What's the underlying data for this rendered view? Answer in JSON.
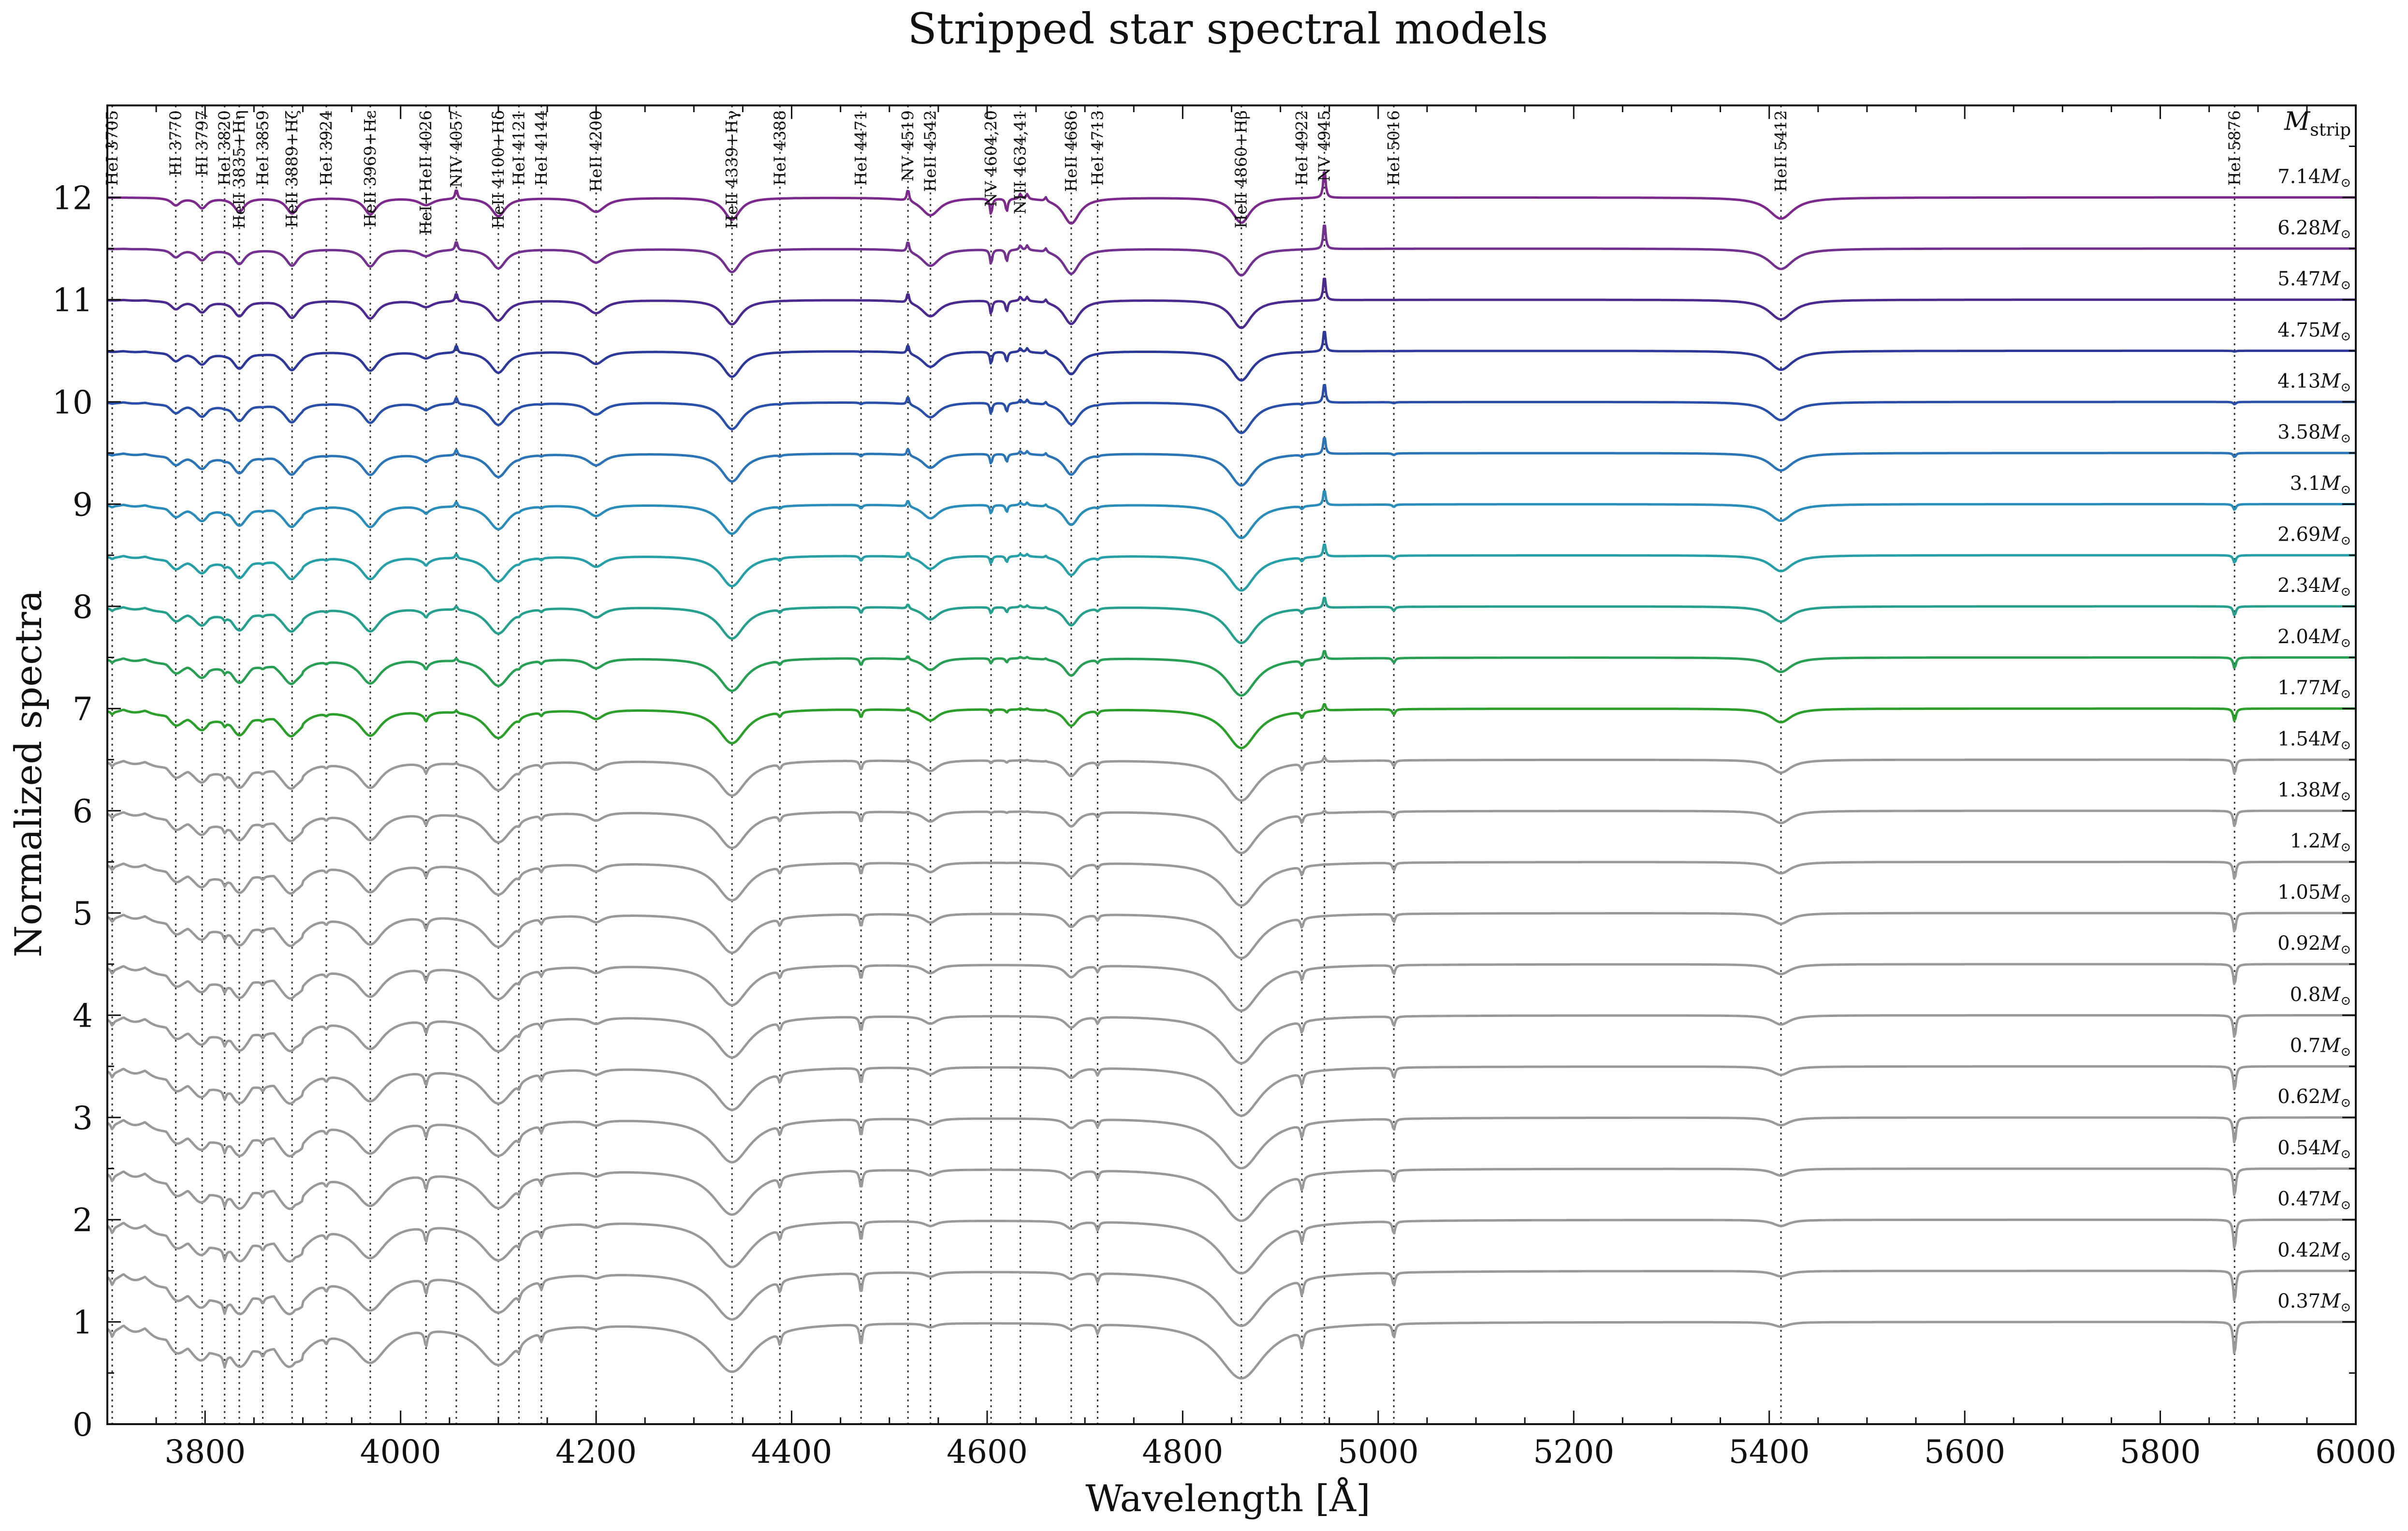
{
  "chart_data": {
    "type": "line",
    "title": "Stripped star spectral models",
    "xlabel": "Wavelength [Å]",
    "ylabel": "Normalized spectra",
    "xlim": [
      3700,
      6000
    ],
    "ylim": [
      0,
      12.9
    ],
    "x_ticks": [
      3800,
      4000,
      4200,
      4400,
      4600,
      4800,
      5000,
      5200,
      5400,
      5600,
      5800,
      6000
    ],
    "y_ticks": [
      0,
      1,
      2,
      3,
      4,
      5,
      6,
      7,
      8,
      9,
      10,
      11,
      12
    ],
    "legend_title": "M_strip",
    "legend_title_main": "M",
    "legend_title_sub": "strip",
    "legend_placement": "right",
    "line_ids": [
      {
        "label": "HeI 3705",
        "x": 3705
      },
      {
        "label": "HI 3770",
        "x": 3770
      },
      {
        "label": "HI 3797",
        "x": 3797
      },
      {
        "label": "HeI 3820",
        "x": 3820
      },
      {
        "label": "HeII 3835+Hη",
        "x": 3835
      },
      {
        "label": "HeI 3859",
        "x": 3859
      },
      {
        "label": "HeII 3889+Hζ",
        "x": 3889
      },
      {
        "label": "HeI 3924",
        "x": 3924
      },
      {
        "label": "HeII 3969+Hε",
        "x": 3969
      },
      {
        "label": "HeI+HeII 4026",
        "x": 4026
      },
      {
        "label": "NIV 4057",
        "x": 4057
      },
      {
        "label": "HeII 4100+Hδ",
        "x": 4100
      },
      {
        "label": "HeI 4121",
        "x": 4121
      },
      {
        "label": "HeI 4144",
        "x": 4144
      },
      {
        "label": "HeII 4200",
        "x": 4200
      },
      {
        "label": "HeII 4339+Hγ",
        "x": 4339
      },
      {
        "label": "HeI 4388",
        "x": 4388
      },
      {
        "label": "HeI 4471",
        "x": 4471
      },
      {
        "label": "NV 4519",
        "x": 4519
      },
      {
        "label": "HeII 4542",
        "x": 4542
      },
      {
        "label": "NV 4604,20",
        "x": 4604
      },
      {
        "label": "NIII 4634,41",
        "x": 4634
      },
      {
        "label": "HeII 4686",
        "x": 4686
      },
      {
        "label": "HeI 4713",
        "x": 4713
      },
      {
        "label": "HeII 4860+Hβ",
        "x": 4860
      },
      {
        "label": "HeI 4922",
        "x": 4922
      },
      {
        "label": "NV 4945",
        "x": 4945
      },
      {
        "label": "HeI 5016",
        "x": 5016
      },
      {
        "label": "HeII 5412",
        "x": 5412
      },
      {
        "label": "HeI 5876",
        "x": 5876
      }
    ],
    "series": [
      {
        "name": "7.14",
        "offset": 12.0,
        "color": "#7b2a8c"
      },
      {
        "name": "6.28",
        "offset": 11.5,
        "color": "#72308f"
      },
      {
        "name": "5.47",
        "offset": 11.0,
        "color": "#4a2a8e"
      },
      {
        "name": "4.75",
        "offset": 10.5,
        "color": "#2d3898"
      },
      {
        "name": "4.13",
        "offset": 10.0,
        "color": "#2a4fa8"
      },
      {
        "name": "3.58",
        "offset": 9.5,
        "color": "#2b74b6"
      },
      {
        "name": "3.1",
        "offset": 9.0,
        "color": "#2a8cb8"
      },
      {
        "name": "2.69",
        "offset": 8.5,
        "color": "#26a0a6"
      },
      {
        "name": "2.34",
        "offset": 8.0,
        "color": "#26a08c"
      },
      {
        "name": "2.04",
        "offset": 7.5,
        "color": "#289f55"
      },
      {
        "name": "1.77",
        "offset": 7.0,
        "color": "#2c9e2c"
      },
      {
        "name": "1.54",
        "offset": 6.5,
        "color": "#999999"
      },
      {
        "name": "1.38",
        "offset": 6.0,
        "color": "#999999"
      },
      {
        "name": "1.2",
        "offset": 5.5,
        "color": "#999999"
      },
      {
        "name": "1.05",
        "offset": 5.0,
        "color": "#999999"
      },
      {
        "name": "0.92",
        "offset": 4.5,
        "color": "#999999"
      },
      {
        "name": "0.8",
        "offset": 4.0,
        "color": "#999999"
      },
      {
        "name": "0.7",
        "offset": 3.5,
        "color": "#999999"
      },
      {
        "name": "0.62",
        "offset": 3.0,
        "color": "#999999"
      },
      {
        "name": "0.54",
        "offset": 2.5,
        "color": "#999999"
      },
      {
        "name": "0.47",
        "offset": 2.0,
        "color": "#999999"
      },
      {
        "name": "0.42",
        "offset": 1.5,
        "color": "#999999"
      },
      {
        "name": "0.37",
        "offset": 1.0,
        "color": "#999999"
      }
    ],
    "mass_unit": "M",
    "mass_unit_sub": "⊙"
  }
}
